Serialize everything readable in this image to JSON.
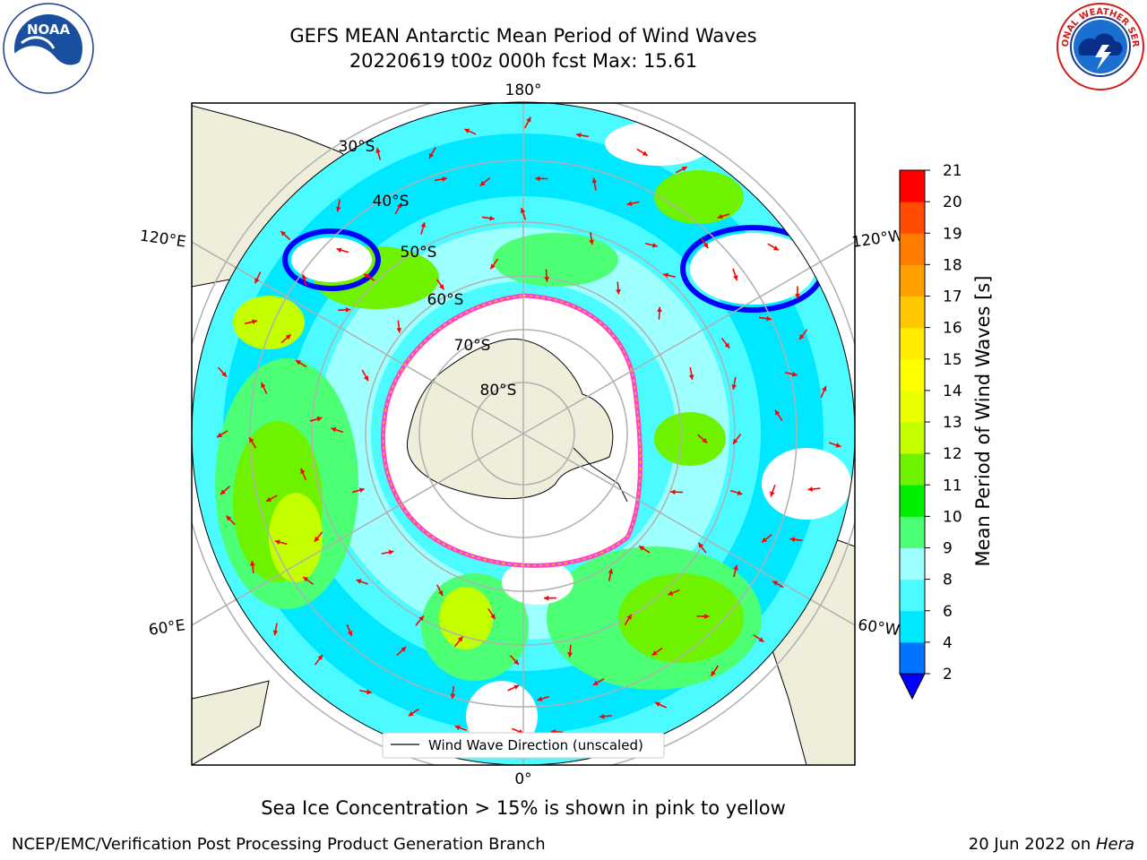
{
  "title": {
    "line1": "GEFS MEAN Antarctic Mean Period of Wind Waves",
    "line2": "20220619 t00z 000h fcst   Max: 15.61"
  },
  "logos": {
    "left": {
      "name": "noaa-logo",
      "text": "NOAA",
      "ring_text": "NATIONAL OCEANIC AND ATMOSPHERIC ADMINISTRATION · U.S. DEPARTMENT OF COMMERCE"
    },
    "right": {
      "name": "nws-logo",
      "ring_text": "NATIONAL WEATHER SERVICE"
    }
  },
  "map": {
    "projection": "south-polar-stereographic",
    "longitude_labels": {
      "top": "180°",
      "bottom": "0°",
      "upper_left": "120°E",
      "upper_right": "120°W",
      "lower_left": "60°E",
      "lower_right": "60°W"
    },
    "latitude_labels": [
      "30°S",
      "40°S",
      "50°S",
      "60°S",
      "70°S",
      "80°S"
    ],
    "legend_label": "Wind Wave Direction (unscaled)",
    "colors": {
      "land": "#eeeedb",
      "ocean_shallow": "#00c4ff",
      "arrow": "#ff0000",
      "ice_edge": "#ff44cc",
      "grid": "#b0b0b0"
    }
  },
  "colorbar": {
    "label": "Mean Period of Wind Waves [s]",
    "ticks": [
      "2",
      "4",
      "6",
      "8",
      "9",
      "10",
      "11",
      "12",
      "13",
      "14",
      "15",
      "16",
      "17",
      "18",
      "19",
      "20",
      "21"
    ],
    "colors": [
      "#0074ff",
      "#00e8ff",
      "#4cfbff",
      "#9effff",
      "#4cff74",
      "#00ee00",
      "#6ef200",
      "#c4ff00",
      "#eaff00",
      "#ffff00",
      "#ffec00",
      "#ffc800",
      "#ffa000",
      "#ff7c00",
      "#ff4c00",
      "#ff0000"
    ],
    "under_color": "#0000ff",
    "extend": "min"
  },
  "caption": "Sea Ice Concentration > 15% is shown in pink to yellow",
  "footer": {
    "left": "NCEP/EMC/Verification Post Processing Product Generation Branch",
    "date": "20 Jun 2022 on ",
    "host": "Hera"
  }
}
